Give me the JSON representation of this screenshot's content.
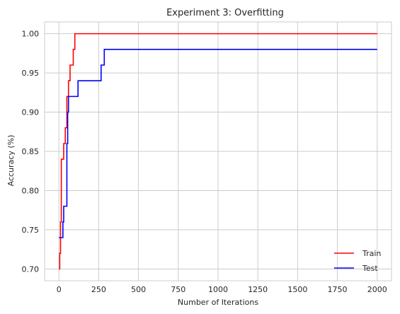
{
  "chart_data": {
    "type": "line",
    "title": "Experiment 3: Overfitting",
    "xlabel": "Number of Iterations",
    "ylabel": "Accuracy (%)",
    "xlim": [
      -90,
      2090
    ],
    "ylim": [
      0.685,
      1.015
    ],
    "xticks": [
      0,
      250,
      500,
      750,
      1000,
      1250,
      1500,
      1750,
      2000
    ],
    "yticks": [
      0.7,
      0.75,
      0.8,
      0.85,
      0.9,
      0.95,
      1.0
    ],
    "grid": true,
    "legend_position": "lower-right",
    "series": [
      {
        "name": "Train",
        "color": "#ff0000",
        "step": true,
        "x": [
          0,
          5,
          10,
          15,
          20,
          25,
          30,
          40,
          50,
          60,
          70,
          80,
          90,
          95,
          100,
          2000
        ],
        "y": [
          0.7,
          0.72,
          0.76,
          0.84,
          0.84,
          0.84,
          0.86,
          0.88,
          0.92,
          0.94,
          0.96,
          0.96,
          0.98,
          0.98,
          1.0,
          1.0
        ]
      },
      {
        "name": "Test",
        "color": "#0000ff",
        "step": true,
        "x": [
          0,
          20,
          25,
          30,
          40,
          45,
          50,
          55,
          60,
          70,
          80,
          100,
          120,
          250,
          265,
          285,
          2000
        ],
        "y": [
          0.74,
          0.74,
          0.76,
          0.78,
          0.78,
          0.78,
          0.86,
          0.9,
          0.92,
          0.92,
          0.92,
          0.92,
          0.94,
          0.94,
          0.96,
          0.98,
          0.98
        ]
      }
    ]
  }
}
